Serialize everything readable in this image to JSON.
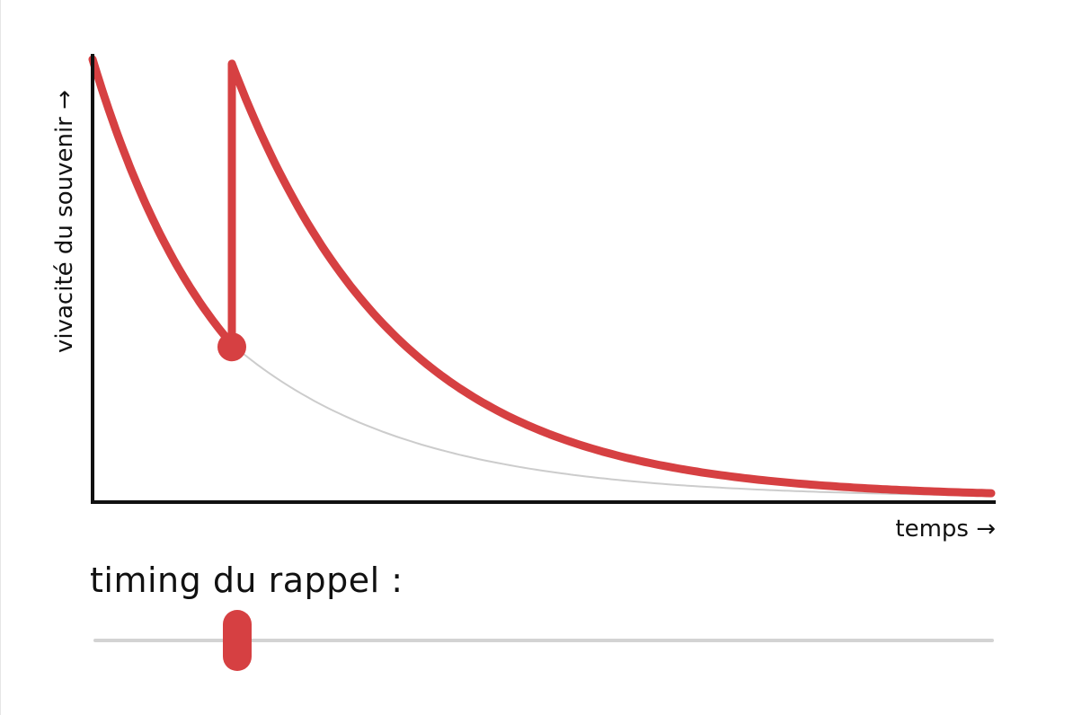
{
  "chart_data": {
    "type": "line",
    "title": "",
    "xlabel": "temps →",
    "ylabel": "vivacité du souvenir →",
    "xlim": [
      0,
      1
    ],
    "ylim": [
      0,
      1
    ],
    "grid": false,
    "recall_time": 0.155,
    "series": [
      {
        "style": "highlighted",
        "x": [
          0,
          0.05,
          0.1,
          0.155,
          0.155,
          0.25,
          0.35,
          0.5,
          0.65,
          0.8,
          1.0
        ],
        "y": [
          1.0,
          0.87,
          0.75,
          0.35,
          0.99,
          0.72,
          0.5,
          0.28,
          0.14,
          0.07,
          0.01
        ]
      },
      {
        "style": "faded",
        "x": [
          0.155,
          0.25,
          0.4,
          0.6,
          0.8,
          1.0
        ],
        "y": [
          0.35,
          0.23,
          0.11,
          0.04,
          0.015,
          0.005
        ]
      }
    ]
  },
  "colors": {
    "curve": "#d64042",
    "faded_curve": "#cccccc",
    "axis": "#111111",
    "track": "#d3d3d3"
  },
  "slider": {
    "label": "timing du rappel :",
    "value": 0.16
  }
}
